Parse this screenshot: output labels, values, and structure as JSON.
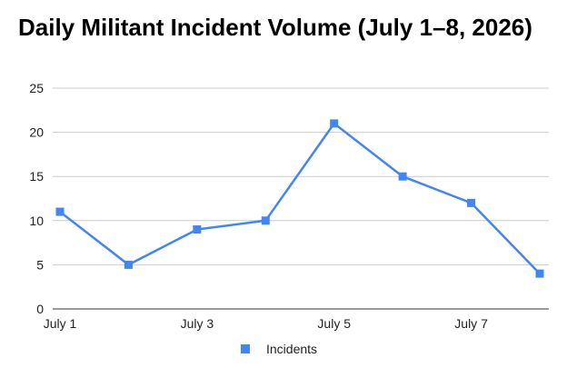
{
  "chart_data": {
    "type": "line",
    "title": "Daily Militant Incident Volume (July 1–8, 2026)",
    "xlabel": "",
    "ylabel": "",
    "categories": [
      "July 1",
      "July 2",
      "July 3",
      "July 4",
      "July 5",
      "July 6",
      "July 7",
      "July 8"
    ],
    "x_tick_labels": [
      "July 1",
      "July 3",
      "July 5",
      "July 7"
    ],
    "series": [
      {
        "name": "Incidents",
        "values": [
          11,
          5,
          9,
          10,
          21,
          15,
          12,
          4
        ],
        "color": "#4285f4"
      }
    ],
    "ylim": [
      0,
      25
    ],
    "yticks": [
      0,
      5,
      10,
      15,
      20,
      25
    ],
    "grid": true,
    "legend_position": "bottom"
  }
}
